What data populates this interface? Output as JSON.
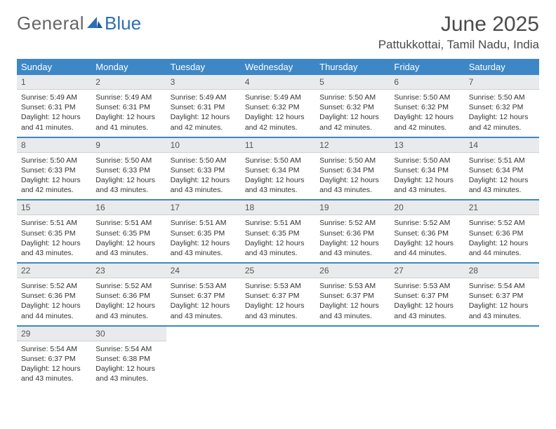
{
  "logo": {
    "text1": "General",
    "text2": "Blue"
  },
  "title": "June 2025",
  "subtitle": "Pattukkottai, Tamil Nadu, India",
  "colors": {
    "header_bg": "#3d87c7",
    "header_text": "#ffffff",
    "daynum_bg": "#e9eaeb",
    "row_border": "#3d87c7",
    "page_bg": "#ffffff"
  },
  "weekdays": [
    "Sunday",
    "Monday",
    "Tuesday",
    "Wednesday",
    "Thursday",
    "Friday",
    "Saturday"
  ],
  "days": [
    {
      "n": "1",
      "sunrise": "5:49 AM",
      "sunset": "6:31 PM",
      "daylight": "12 hours and 41 minutes."
    },
    {
      "n": "2",
      "sunrise": "5:49 AM",
      "sunset": "6:31 PM",
      "daylight": "12 hours and 41 minutes."
    },
    {
      "n": "3",
      "sunrise": "5:49 AM",
      "sunset": "6:31 PM",
      "daylight": "12 hours and 42 minutes."
    },
    {
      "n": "4",
      "sunrise": "5:49 AM",
      "sunset": "6:32 PM",
      "daylight": "12 hours and 42 minutes."
    },
    {
      "n": "5",
      "sunrise": "5:50 AM",
      "sunset": "6:32 PM",
      "daylight": "12 hours and 42 minutes."
    },
    {
      "n": "6",
      "sunrise": "5:50 AM",
      "sunset": "6:32 PM",
      "daylight": "12 hours and 42 minutes."
    },
    {
      "n": "7",
      "sunrise": "5:50 AM",
      "sunset": "6:32 PM",
      "daylight": "12 hours and 42 minutes."
    },
    {
      "n": "8",
      "sunrise": "5:50 AM",
      "sunset": "6:33 PM",
      "daylight": "12 hours and 42 minutes."
    },
    {
      "n": "9",
      "sunrise": "5:50 AM",
      "sunset": "6:33 PM",
      "daylight": "12 hours and 43 minutes."
    },
    {
      "n": "10",
      "sunrise": "5:50 AM",
      "sunset": "6:33 PM",
      "daylight": "12 hours and 43 minutes."
    },
    {
      "n": "11",
      "sunrise": "5:50 AM",
      "sunset": "6:34 PM",
      "daylight": "12 hours and 43 minutes."
    },
    {
      "n": "12",
      "sunrise": "5:50 AM",
      "sunset": "6:34 PM",
      "daylight": "12 hours and 43 minutes."
    },
    {
      "n": "13",
      "sunrise": "5:50 AM",
      "sunset": "6:34 PM",
      "daylight": "12 hours and 43 minutes."
    },
    {
      "n": "14",
      "sunrise": "5:51 AM",
      "sunset": "6:34 PM",
      "daylight": "12 hours and 43 minutes."
    },
    {
      "n": "15",
      "sunrise": "5:51 AM",
      "sunset": "6:35 PM",
      "daylight": "12 hours and 43 minutes."
    },
    {
      "n": "16",
      "sunrise": "5:51 AM",
      "sunset": "6:35 PM",
      "daylight": "12 hours and 43 minutes."
    },
    {
      "n": "17",
      "sunrise": "5:51 AM",
      "sunset": "6:35 PM",
      "daylight": "12 hours and 43 minutes."
    },
    {
      "n": "18",
      "sunrise": "5:51 AM",
      "sunset": "6:35 PM",
      "daylight": "12 hours and 43 minutes."
    },
    {
      "n": "19",
      "sunrise": "5:52 AM",
      "sunset": "6:36 PM",
      "daylight": "12 hours and 43 minutes."
    },
    {
      "n": "20",
      "sunrise": "5:52 AM",
      "sunset": "6:36 PM",
      "daylight": "12 hours and 44 minutes."
    },
    {
      "n": "21",
      "sunrise": "5:52 AM",
      "sunset": "6:36 PM",
      "daylight": "12 hours and 44 minutes."
    },
    {
      "n": "22",
      "sunrise": "5:52 AM",
      "sunset": "6:36 PM",
      "daylight": "12 hours and 44 minutes."
    },
    {
      "n": "23",
      "sunrise": "5:52 AM",
      "sunset": "6:36 PM",
      "daylight": "12 hours and 43 minutes."
    },
    {
      "n": "24",
      "sunrise": "5:53 AM",
      "sunset": "6:37 PM",
      "daylight": "12 hours and 43 minutes."
    },
    {
      "n": "25",
      "sunrise": "5:53 AM",
      "sunset": "6:37 PM",
      "daylight": "12 hours and 43 minutes."
    },
    {
      "n": "26",
      "sunrise": "5:53 AM",
      "sunset": "6:37 PM",
      "daylight": "12 hours and 43 minutes."
    },
    {
      "n": "27",
      "sunrise": "5:53 AM",
      "sunset": "6:37 PM",
      "daylight": "12 hours and 43 minutes."
    },
    {
      "n": "28",
      "sunrise": "5:54 AM",
      "sunset": "6:37 PM",
      "daylight": "12 hours and 43 minutes."
    },
    {
      "n": "29",
      "sunrise": "5:54 AM",
      "sunset": "6:37 PM",
      "daylight": "12 hours and 43 minutes."
    },
    {
      "n": "30",
      "sunrise": "5:54 AM",
      "sunset": "6:38 PM",
      "daylight": "12 hours and 43 minutes."
    }
  ],
  "labels": {
    "sunrise": "Sunrise:",
    "sunset": "Sunset:",
    "daylight": "Daylight:"
  }
}
